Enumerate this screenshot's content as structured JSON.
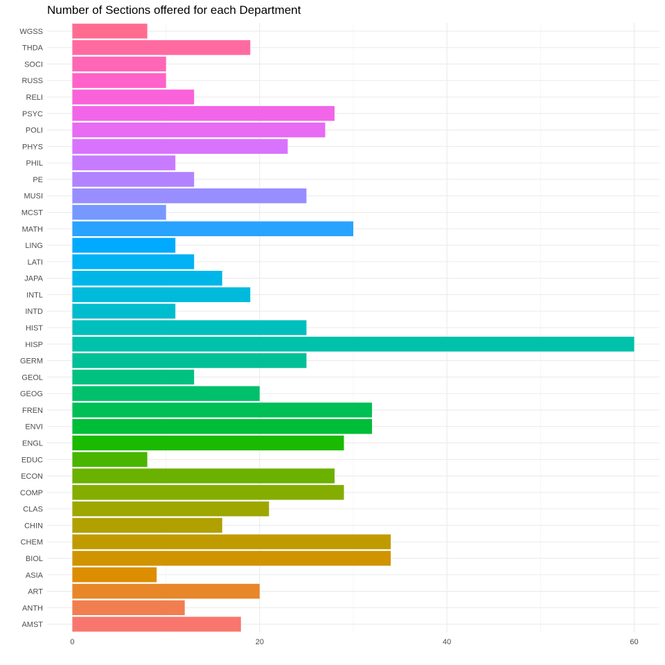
{
  "chart_data": {
    "type": "bar",
    "orientation": "horizontal",
    "title": "Number of Sections offered for each Department",
    "xlabel": "",
    "ylabel": "",
    "xlim": [
      -2.7,
      62.7
    ],
    "x_ticks": [
      0,
      20,
      40,
      60
    ],
    "grid": true,
    "legend": "none",
    "categories": [
      "AMST",
      "ANTH",
      "ART",
      "ASIA",
      "BIOL",
      "CHEM",
      "CHIN",
      "CLAS",
      "COMP",
      "ECON",
      "EDUC",
      "ENGL",
      "ENVI",
      "FREN",
      "GEOG",
      "GEOL",
      "GERM",
      "HISP",
      "HIST",
      "INTD",
      "INTL",
      "JAPA",
      "LATI",
      "LING",
      "MATH",
      "MCST",
      "MUSI",
      "PE",
      "PHIL",
      "PHYS",
      "POLI",
      "PSYC",
      "RELI",
      "RUSS",
      "SOCI",
      "THDA",
      "WGSS"
    ],
    "values": [
      18,
      12,
      20,
      9,
      34,
      34,
      16,
      21,
      29,
      28,
      8,
      29,
      32,
      32,
      20,
      13,
      25,
      60,
      25,
      11,
      19,
      16,
      13,
      11,
      30,
      10,
      25,
      13,
      11,
      23,
      27,
      28,
      13,
      10,
      10,
      19,
      8
    ],
    "colors": [
      "#F8766D",
      "#F17E4F",
      "#E8862A",
      "#DD8D00",
      "#D09400",
      "#C09B00",
      "#B0A000",
      "#9DA700",
      "#84AD00",
      "#6BB100",
      "#49B500",
      "#1ABA00",
      "#00BD38",
      "#00BF55",
      "#00C06B",
      "#00C180",
      "#00C097",
      "#00C1AA",
      "#00BFBD",
      "#00BDCD",
      "#00BADC",
      "#00B6E9",
      "#00B1F4",
      "#00AAFE",
      "#28A3FF",
      "#7799FF",
      "#988EFF",
      "#B183FF",
      "#C77CFF",
      "#D973FD",
      "#E76BF3",
      "#F265E8",
      "#FA62DA",
      "#FF62C8",
      "#FF66B5",
      "#FF6BA1",
      "#FF6C90"
    ]
  }
}
